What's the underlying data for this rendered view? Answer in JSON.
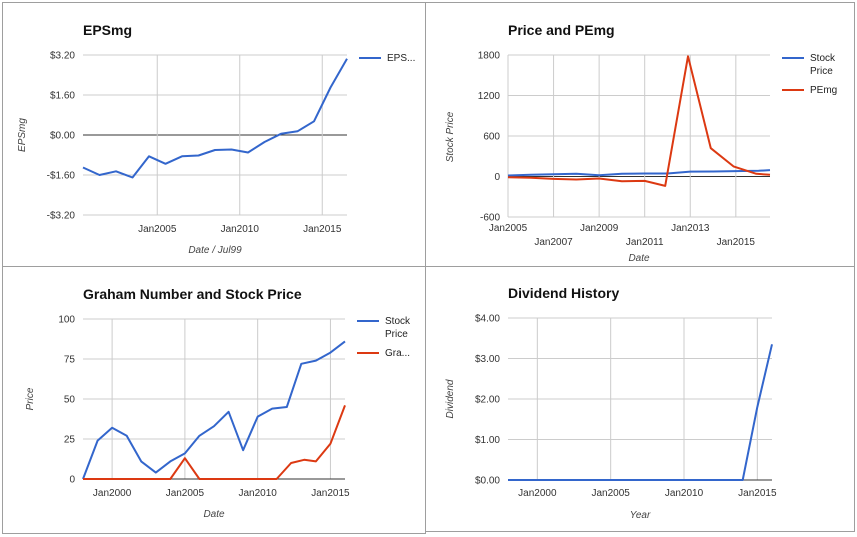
{
  "colors": {
    "blue": "#3366cc",
    "red": "#dc3912",
    "grid": "#cccccc",
    "zero": "#333333"
  },
  "chart_data": [
    {
      "type": "line",
      "title": "EPSmg",
      "xlabel": "Date / Jul99",
      "ylabel": "EPSmg",
      "xlim": [
        2000.5,
        2016.5
      ],
      "ylim": [
        -3.2,
        3.2
      ],
      "yticks": [
        3.2,
        1.6,
        0.0,
        -1.6,
        -3.2
      ],
      "ytick_labels": [
        "$3.20",
        "$1.60",
        "$0.00",
        "-$1.60",
        "-$3.20"
      ],
      "xticks": [
        2005,
        2010,
        2015
      ],
      "xtick_labels": [
        "Jan2005",
        "Jan2010",
        "Jan2015"
      ],
      "grid": true,
      "legend": "right",
      "series": [
        {
          "name": "EPS...",
          "color": "#3366cc",
          "x": [
            2000.5,
            2001.5,
            2002.5,
            2003.5,
            2004.5,
            2005.5,
            2006.5,
            2007.5,
            2008.5,
            2009.5,
            2010.5,
            2011.5,
            2012.5,
            2013.5,
            2014.5,
            2015.5,
            2016.5
          ],
          "y": [
            -1.3,
            -1.6,
            -1.45,
            -1.7,
            -0.85,
            -1.15,
            -0.85,
            -0.82,
            -0.6,
            -0.58,
            -0.7,
            -0.28,
            0.05,
            0.15,
            0.55,
            1.9,
            3.05
          ]
        }
      ]
    },
    {
      "type": "line",
      "title": "Price and PEmg",
      "xlabel": "Date",
      "ylabel": "Stock Price",
      "xlim": [
        2005,
        2016.5
      ],
      "ylim": [
        -600,
        1800
      ],
      "yticks": [
        1800,
        1200,
        600,
        0,
        -600
      ],
      "ytick_labels": [
        "1800",
        "1200",
        "600",
        "0",
        "-600"
      ],
      "xticks": [
        2005,
        2007,
        2009,
        2011,
        2013,
        2015
      ],
      "xtick_labels": [
        "Jan2005",
        "Jan2007",
        "Jan2009",
        "Jan2011",
        "Jan2013",
        "Jan2015"
      ],
      "grid": true,
      "legend": "right",
      "series": [
        {
          "name": "Stock Price",
          "color": "#3366cc",
          "x": [
            2005,
            2006,
            2007,
            2008,
            2009,
            2010,
            2011,
            2012,
            2013,
            2014,
            2015,
            2016,
            2016.5
          ],
          "y": [
            15,
            25,
            32,
            42,
            18,
            40,
            45,
            45,
            72,
            74,
            80,
            85,
            95
          ]
        },
        {
          "name": "PEmg",
          "color": "#dc3912",
          "x": [
            2005,
            2006,
            2007,
            2008,
            2009,
            2010,
            2011,
            2011.9,
            2012.9,
            2013.9,
            2014.9,
            2015.9,
            2016.5
          ],
          "y": [
            -10,
            -20,
            -35,
            -45,
            -30,
            -70,
            -65,
            -140,
            1780,
            420,
            150,
            40,
            25
          ]
        }
      ]
    },
    {
      "type": "line",
      "title": "Graham Number and Stock Price",
      "xlabel": "Date",
      "ylabel": "Price",
      "xlim": [
        1998,
        2016
      ],
      "ylim": [
        0,
        100
      ],
      "yticks": [
        100,
        75,
        50,
        25,
        0
      ],
      "ytick_labels": [
        "100",
        "75",
        "50",
        "25",
        "0"
      ],
      "xticks": [
        2000,
        2005,
        2010,
        2015
      ],
      "xtick_labels": [
        "Jan2000",
        "Jan2005",
        "Jan2010",
        "Jan2015"
      ],
      "grid": true,
      "legend": "right",
      "series": [
        {
          "name": "Stock Price",
          "color": "#3366cc",
          "x": [
            1998,
            1999,
            2000,
            2001,
            2002,
            2003,
            2004,
            2005,
            2006,
            2007,
            2008,
            2009,
            2010,
            2011,
            2012,
            2013,
            2014,
            2015,
            2016
          ],
          "y": [
            0,
            24,
            32,
            27,
            11,
            4,
            11,
            16,
            27,
            33,
            42,
            18,
            39,
            44,
            45,
            72,
            74,
            79,
            86
          ]
        },
        {
          "name": "Gra...",
          "color": "#dc3912",
          "x": [
            1998,
            2004,
            2005,
            2006,
            2010.5,
            2011.3,
            2012.3,
            2013.2,
            2014,
            2015,
            2016
          ],
          "y": [
            0,
            0,
            13,
            0,
            0,
            0,
            10,
            12,
            11,
            22,
            46
          ]
        }
      ]
    },
    {
      "type": "line",
      "title": "Dividend History",
      "xlabel": "Year",
      "ylabel": "Dividend",
      "xlim": [
        1998,
        2016
      ],
      "ylim": [
        0,
        4
      ],
      "yticks": [
        4,
        3,
        2,
        1,
        0
      ],
      "ytick_labels": [
        "$4.00",
        "$3.00",
        "$2.00",
        "$1.00",
        "$0.00"
      ],
      "xticks": [
        2000,
        2005,
        2010,
        2015
      ],
      "xtick_labels": [
        "Jan2000",
        "Jan2005",
        "Jan2010",
        "Jan2015"
      ],
      "grid": true,
      "legend": "none",
      "series": [
        {
          "name": "",
          "color": "#3366cc",
          "x": [
            1998,
            2014,
            2015,
            2016
          ],
          "y": [
            0,
            0,
            1.8,
            3.35
          ]
        }
      ]
    }
  ]
}
